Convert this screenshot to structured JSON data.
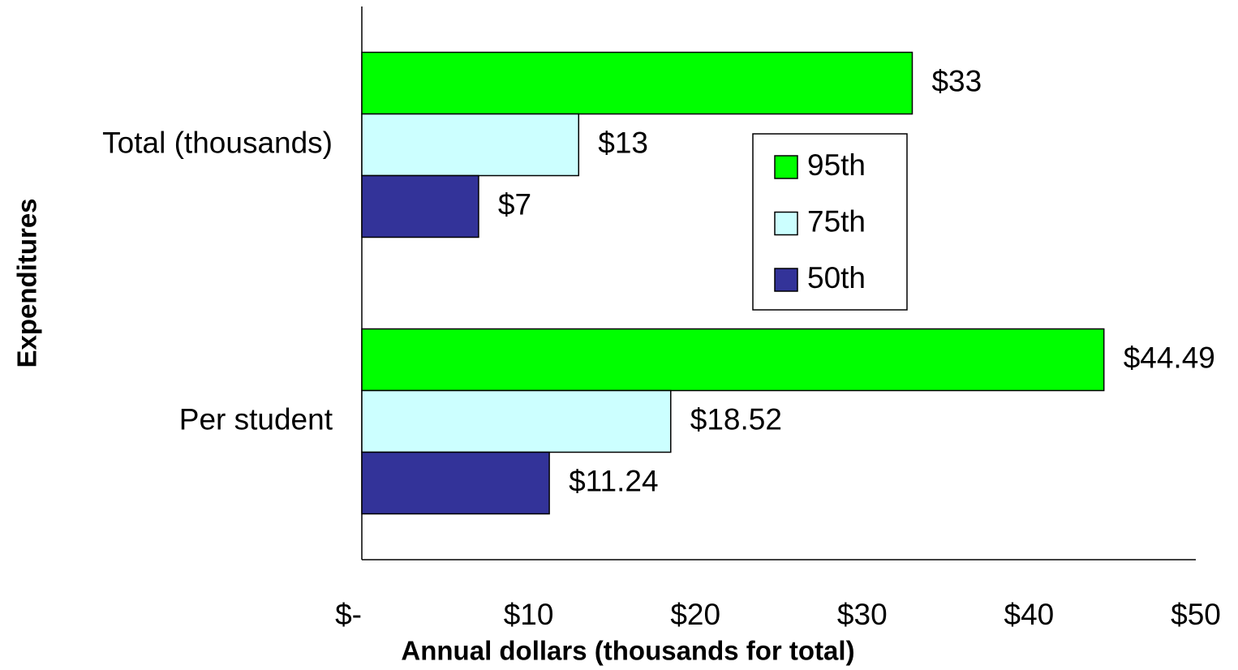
{
  "chart_data": {
    "type": "hbar",
    "xlabel": "Annual dollars (thousands for total)",
    "ylabel": "Expenditures",
    "categories": [
      "Total (thousands)",
      "Per student"
    ],
    "series": [
      {
        "name": "95th",
        "color": "#00ff00",
        "values": [
          33,
          44.49
        ],
        "value_labels": [
          "$33",
          "$44.49"
        ]
      },
      {
        "name": "75th",
        "color": "#ccffff",
        "values": [
          13,
          18.52
        ],
        "value_labels": [
          "$13",
          "$18.52"
        ]
      },
      {
        "name": "50th",
        "color": "#333399",
        "values": [
          7,
          11.24
        ],
        "value_labels": [
          "$7",
          "$11.24"
        ]
      }
    ],
    "xlim": [
      0,
      50
    ],
    "xticks": [
      {
        "value": 0,
        "label": "$-"
      },
      {
        "value": 10,
        "label": "$10"
      },
      {
        "value": 20,
        "label": "$20"
      },
      {
        "value": 30,
        "label": "$30"
      },
      {
        "value": 40,
        "label": "$40"
      },
      {
        "value": 50,
        "label": "$50"
      }
    ],
    "grid": false
  }
}
